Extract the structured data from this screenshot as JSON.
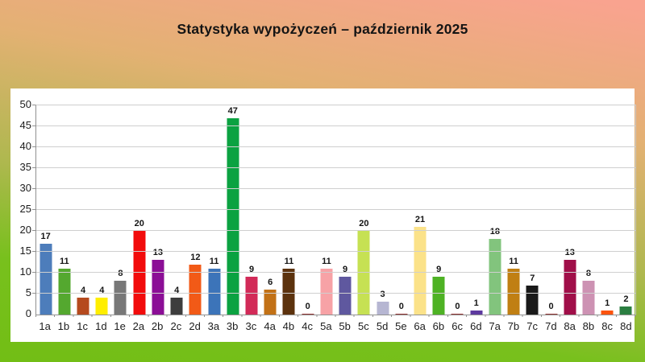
{
  "title": "Statystyka wypożyczeń – październik 2025",
  "colors": {
    "background_gradient_top": "#f9a38f",
    "background_gradient_tan": "#e3b173",
    "background_gradient_olive": "#aeb84e",
    "background_gradient_green": "#78c01d",
    "panel": "#ffffff",
    "grid": "#cfcfcf",
    "axis": "#919191",
    "text": "#1c1c1c"
  },
  "chart_data": {
    "type": "bar",
    "title": "Statystyka wypożyczeń – październik 2025",
    "categories": [
      "1a",
      "1b",
      "1c",
      "1d",
      "1e",
      "2a",
      "2b",
      "2c",
      "2d",
      "3a",
      "3b",
      "3c",
      "4a",
      "4b",
      "4c",
      "5a",
      "5b",
      "5c",
      "5d",
      "5e",
      "6a",
      "6b",
      "6c",
      "6d",
      "7a",
      "7b",
      "7c",
      "7d",
      "8a",
      "8b",
      "8c",
      "8d"
    ],
    "values": [
      17,
      11,
      4,
      4,
      8,
      20,
      13,
      4,
      12,
      11,
      47,
      9,
      6,
      11,
      0,
      11,
      9,
      20,
      3,
      0,
      21,
      9,
      0,
      1,
      18,
      11,
      7,
      0,
      13,
      8,
      1,
      2
    ],
    "bar_colors": [
      "#4d7dbb",
      "#54a82f",
      "#b54a1e",
      "#ffee00",
      "#787878",
      "#f20c0c",
      "#8b0e96",
      "#3d3d3d",
      "#f25a17",
      "#3c74b9",
      "#0ba241",
      "#d22a58",
      "#c27116",
      "#5c320d",
      "#943634",
      "#f7a2a6",
      "#5f589f",
      "#c6e153",
      "#b6b6d2",
      "#943634",
      "#fbe289",
      "#4eb224",
      "#943634",
      "#5d3a9f",
      "#82c47d",
      "#c07f13",
      "#191919",
      "#943634",
      "#a00f49",
      "#cd92b3",
      "#fb530e",
      "#2b7e41"
    ],
    "xlabel": "",
    "ylabel": "",
    "ylim": [
      0,
      50
    ],
    "ytick_step": 5,
    "grid": true,
    "value_labels": true,
    "legend": "none"
  }
}
